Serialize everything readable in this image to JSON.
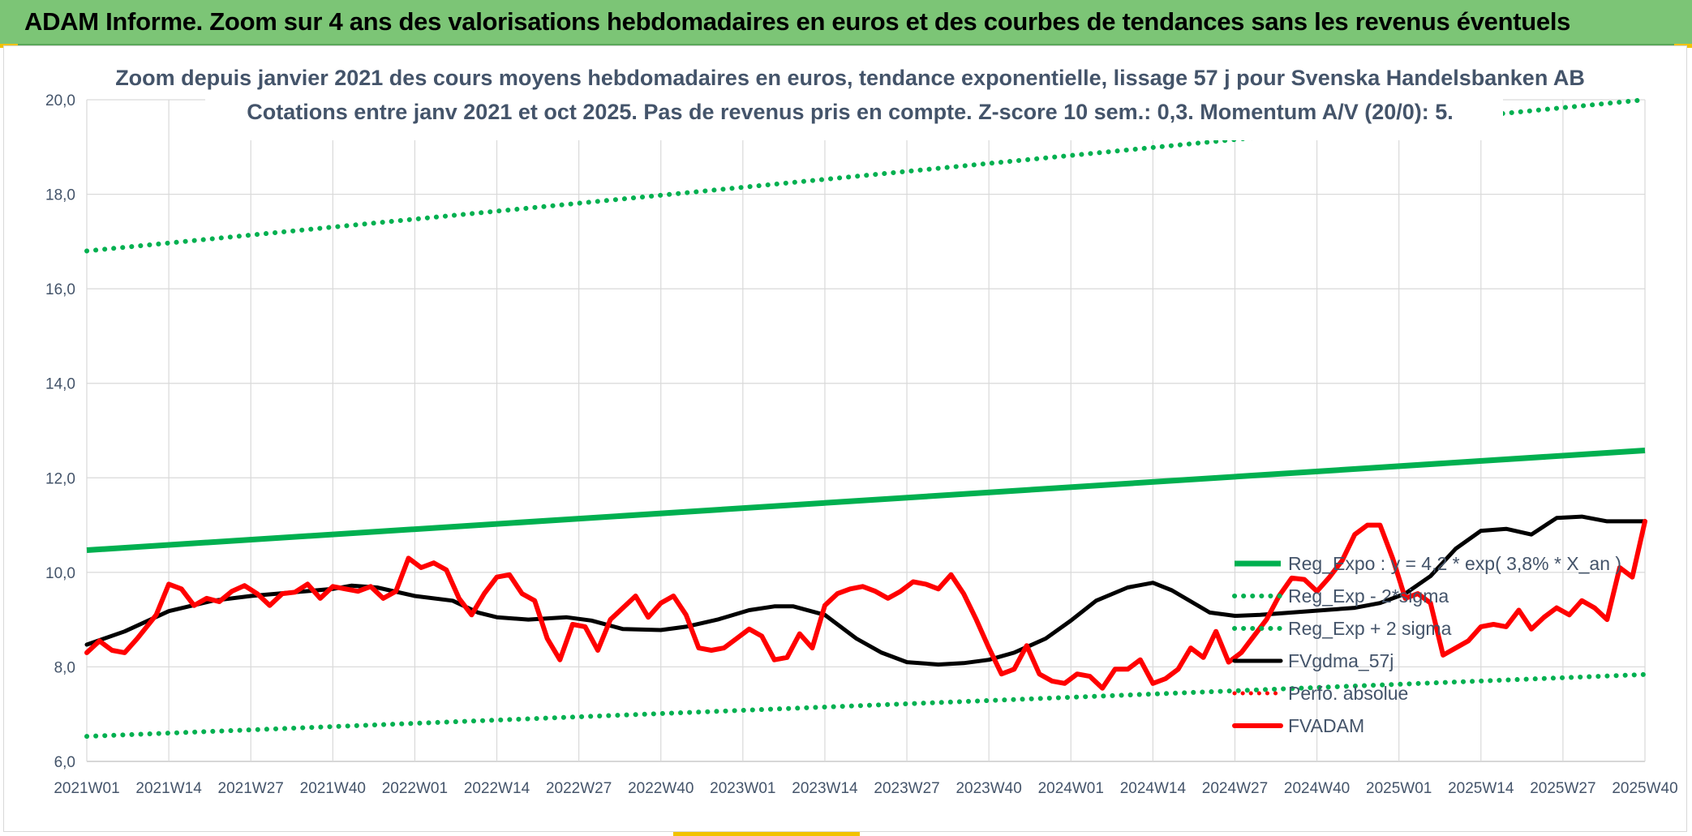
{
  "banner": {
    "title": "ADAM Informe. Zoom sur 4 ans des valorisations hebdomadaires en euros et des courbes de tendances sans les revenus éventuels"
  },
  "colors": {
    "banner": "#7cc576",
    "reg_expo": "#00b050",
    "fvgdma": "#000000",
    "fvadam": "#ff0000",
    "text": "#44546a",
    "grid": "#d9d9d9"
  },
  "chart_data": {
    "type": "line",
    "title": "Zoom depuis janvier 2021 des cours moyens hebdomadaires en euros, tendance exponentielle, lissage 57 j pour Svenska Handelsbanken AB",
    "subtitle": "Cotations entre janv 2021 et oct 2025. Pas de revenus pris en compte. Z-score 10 sem.: 0,3. Momentum A/V (20/0): 5.",
    "ylim": [
      6,
      20
    ],
    "y_ticks": [
      "6,0",
      "8,0",
      "10,0",
      "12,0",
      "14,0",
      "16,0",
      "18,0",
      "20,0"
    ],
    "x_tick_labels": [
      "2021W01",
      "2021W14",
      "2021W27",
      "2021W40",
      "2022W01",
      "2022W14",
      "2022W27",
      "2022W40",
      "2023W01",
      "2023W14",
      "2023W27",
      "2023W40",
      "2024W01",
      "2024W14",
      "2024W27",
      "2024W40",
      "2025W01",
      "2025W14",
      "2025W27",
      "2025W40"
    ],
    "legend_position": "right",
    "series": [
      {
        "name": "Reg_Expo : y = 4,2 * exp( 3,8% * X_an )",
        "style": "solid-thick",
        "x": [
          0,
          247
        ],
        "values": [
          10.47,
          12.58
        ]
      },
      {
        "name": "Reg_Exp - 2*sigma",
        "style": "dotted",
        "x": [
          0,
          247
        ],
        "values": [
          6.53,
          7.84
        ]
      },
      {
        "name": "Reg_Exp + 2 sigma",
        "style": "dotted",
        "x": [
          0,
          247
        ],
        "values": [
          16.8,
          20.0
        ]
      },
      {
        "name": "FVgdma_57j",
        "style": "solid",
        "x": [
          0,
          6,
          13,
          20,
          26,
          33,
          39,
          42,
          46,
          52,
          58,
          62,
          65,
          70,
          76,
          80,
          85,
          91,
          95,
          100,
          105,
          109,
          112,
          117,
          122,
          126,
          130,
          135,
          139,
          143,
          147,
          152,
          156,
          160,
          165,
          169,
          172,
          178,
          182,
          186,
          191,
          196,
          201,
          205,
          209,
          213,
          217,
          221,
          225,
          229,
          233,
          237,
          241,
          247
        ],
        "values": [
          8.47,
          8.75,
          9.18,
          9.4,
          9.5,
          9.58,
          9.65,
          9.72,
          9.68,
          9.5,
          9.4,
          9.15,
          9.05,
          9.0,
          9.05,
          8.98,
          8.8,
          8.78,
          8.85,
          9.0,
          9.2,
          9.28,
          9.28,
          9.1,
          8.6,
          8.3,
          8.1,
          8.05,
          8.08,
          8.15,
          8.3,
          8.6,
          8.98,
          9.4,
          9.68,
          9.78,
          9.62,
          9.15,
          9.08,
          9.1,
          9.15,
          9.2,
          9.25,
          9.35,
          9.55,
          9.92,
          10.5,
          10.88,
          10.92,
          10.8,
          11.15,
          11.18,
          11.08,
          11.08
        ]
      },
      {
        "name": "Perfo. absolue",
        "style": "dotted-red",
        "x": [],
        "values": []
      },
      {
        "name": "FVADAM",
        "style": "solid-thick",
        "x": [
          0,
          2,
          4,
          6,
          8,
          11,
          13,
          15,
          17,
          19,
          21,
          23,
          25,
          27,
          29,
          31,
          33,
          35,
          37,
          39,
          41,
          43,
          45,
          47,
          49,
          51,
          53,
          55,
          57,
          59,
          61,
          63,
          65,
          67,
          69,
          71,
          73,
          75,
          77,
          79,
          81,
          83,
          85,
          87,
          89,
          91,
          93,
          95,
          97,
          99,
          101,
          103,
          105,
          107,
          109,
          111,
          113,
          115,
          117,
          119,
          121,
          123,
          125,
          127,
          129,
          131,
          133,
          135,
          137,
          139,
          141,
          143,
          145,
          147,
          149,
          151,
          153,
          155,
          157,
          159,
          161,
          163,
          165,
          167,
          169,
          171,
          173,
          175,
          177,
          179,
          181,
          183,
          185,
          187,
          189,
          191,
          193,
          195,
          197,
          199,
          201,
          203,
          205,
          207,
          209,
          211,
          213,
          215,
          217,
          219,
          221,
          223,
          225,
          227,
          229,
          231,
          233,
          235,
          237,
          239,
          241,
          243,
          245,
          247
        ],
        "values": [
          8.3,
          8.55,
          8.35,
          8.3,
          8.6,
          9.1,
          9.75,
          9.65,
          9.3,
          9.45,
          9.38,
          9.6,
          9.72,
          9.55,
          9.3,
          9.55,
          9.58,
          9.75,
          9.45,
          9.7,
          9.65,
          9.6,
          9.7,
          9.45,
          9.6,
          10.3,
          10.1,
          10.2,
          10.05,
          9.45,
          9.1,
          9.55,
          9.9,
          9.95,
          9.55,
          9.4,
          8.6,
          8.15,
          8.9,
          8.85,
          8.35,
          9.0,
          9.25,
          9.5,
          9.05,
          9.35,
          9.5,
          9.1,
          8.4,
          8.35,
          8.4,
          8.6,
          8.8,
          8.65,
          8.15,
          8.2,
          8.7,
          8.4,
          9.3,
          9.55,
          9.65,
          9.7,
          9.6,
          9.45,
          9.6,
          9.8,
          9.75,
          9.65,
          9.95,
          9.55,
          9.0,
          8.4,
          7.85,
          7.95,
          8.45,
          7.85,
          7.7,
          7.65,
          7.85,
          7.8,
          7.55,
          7.95,
          7.95,
          8.15,
          7.65,
          7.75,
          7.95,
          8.4,
          8.2,
          8.75,
          8.1,
          8.3,
          8.65,
          9.0,
          9.5,
          9.88,
          9.85,
          9.6,
          9.9,
          10.25,
          10.8,
          11.0,
          11.0,
          10.3,
          9.45,
          9.55,
          9.35,
          8.25,
          8.4,
          8.55,
          8.85,
          8.9,
          8.85,
          9.2,
          8.8,
          9.05,
          9.25,
          9.1,
          9.4,
          9.25,
          9.0,
          10.1,
          9.9,
          11.08
        ]
      }
    ]
  }
}
